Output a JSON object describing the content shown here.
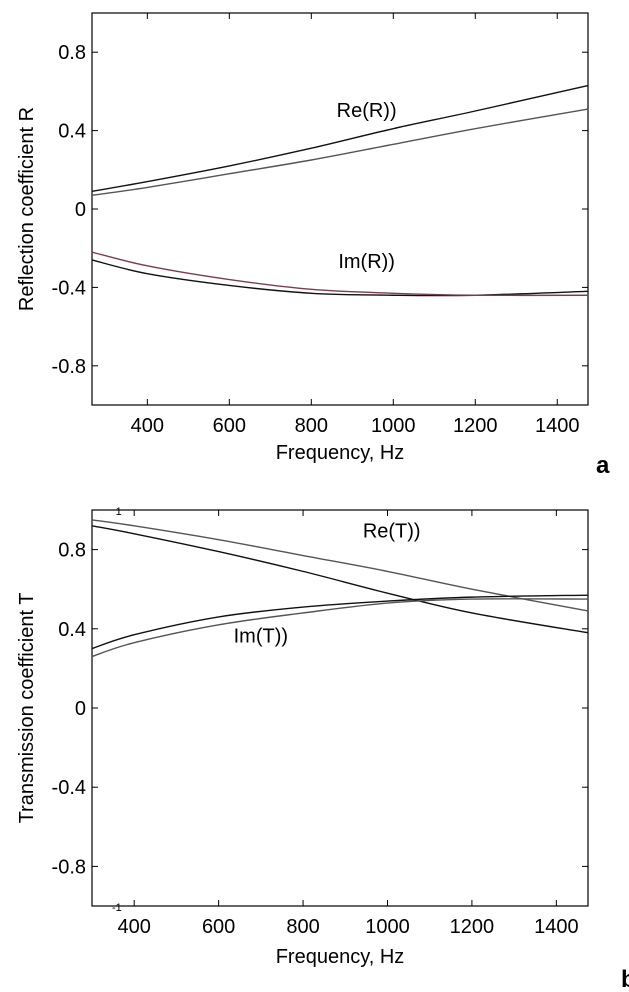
{
  "chart_data": [
    {
      "type": "line",
      "xlabel": "Frequency, Hz",
      "ylabel": "Reflection coefficient R",
      "xlim": [
        265,
        1475
      ],
      "ylim": [
        -1.0,
        1.0
      ],
      "xticks": [
        400,
        600,
        800,
        1000,
        1200,
        1400
      ],
      "yticks": [
        0.8,
        0.4,
        0,
        -0.4,
        -0.8
      ],
      "yticklabels": [
        "0.8",
        "0.4",
        "0",
        "-0.4",
        "-0.8"
      ],
      "grid": false,
      "panel_label": "a",
      "annotations": [
        {
          "text": "Re(R))",
          "x": 935,
          "y": 0.47
        },
        {
          "text": "Im(R))",
          "x": 935,
          "y": -0.3
        }
      ],
      "series": [
        {
          "values_x": [
            265,
            400,
            600,
            800,
            1000,
            1200,
            1475
          ],
          "values_y": [
            0.09,
            0.14,
            0.22,
            0.31,
            0.41,
            0.5,
            0.63
          ]
        },
        {
          "values_x": [
            265,
            400,
            600,
            800,
            1000,
            1200,
            1475
          ],
          "values_y": [
            0.07,
            0.11,
            0.18,
            0.25,
            0.33,
            0.41,
            0.51
          ]
        },
        {
          "values_x": [
            265,
            400,
            600,
            800,
            1000,
            1200,
            1475
          ],
          "values_y": [
            -0.26,
            -0.33,
            -0.39,
            -0.43,
            -0.44,
            -0.44,
            -0.42
          ]
        },
        {
          "values_x": [
            265,
            400,
            600,
            800,
            1000,
            1200,
            1475
          ],
          "values_y": [
            -0.22,
            -0.29,
            -0.36,
            -0.41,
            -0.43,
            -0.44,
            -0.44
          ]
        }
      ]
    },
    {
      "type": "line",
      "xlabel": "Frequency, Hz",
      "ylabel": "Transmission coefficient T",
      "xlim": [
        300,
        1475
      ],
      "ylim": [
        -1.0,
        1.0
      ],
      "xticks": [
        400,
        600,
        800,
        1000,
        1200,
        1400
      ],
      "yticks": [
        0.8,
        0.4,
        0,
        -0.4,
        -0.8
      ],
      "yticklabels": [
        "0.8",
        "0.4",
        "0",
        "-0.4",
        "-0.8"
      ],
      "grid": false,
      "panel_label": "b",
      "extra_labels": [
        {
          "text": "1",
          "x": 380,
          "y": 1.0
        },
        {
          "text": "-1",
          "x": 380,
          "y": -1.0
        }
      ],
      "annotations": [
        {
          "text": "Re(T))",
          "x": 1010,
          "y": 0.86
        },
        {
          "text": "Im(T))",
          "x": 700,
          "y": 0.33
        }
      ],
      "series": [
        {
          "values_x": [
            300,
            400,
            600,
            800,
            1000,
            1200,
            1475
          ],
          "values_y": [
            0.92,
            0.88,
            0.79,
            0.69,
            0.58,
            0.48,
            0.38
          ]
        },
        {
          "values_x": [
            300,
            400,
            600,
            800,
            1000,
            1200,
            1475
          ],
          "values_y": [
            0.95,
            0.92,
            0.85,
            0.77,
            0.69,
            0.6,
            0.49
          ]
        },
        {
          "values_x": [
            300,
            400,
            600,
            800,
            1000,
            1200,
            1475
          ],
          "values_y": [
            0.3,
            0.37,
            0.46,
            0.51,
            0.54,
            0.56,
            0.57
          ]
        },
        {
          "values_x": [
            300,
            400,
            600,
            800,
            1000,
            1200,
            1475
          ],
          "values_y": [
            0.26,
            0.33,
            0.42,
            0.48,
            0.53,
            0.55,
            0.55
          ]
        }
      ]
    }
  ]
}
